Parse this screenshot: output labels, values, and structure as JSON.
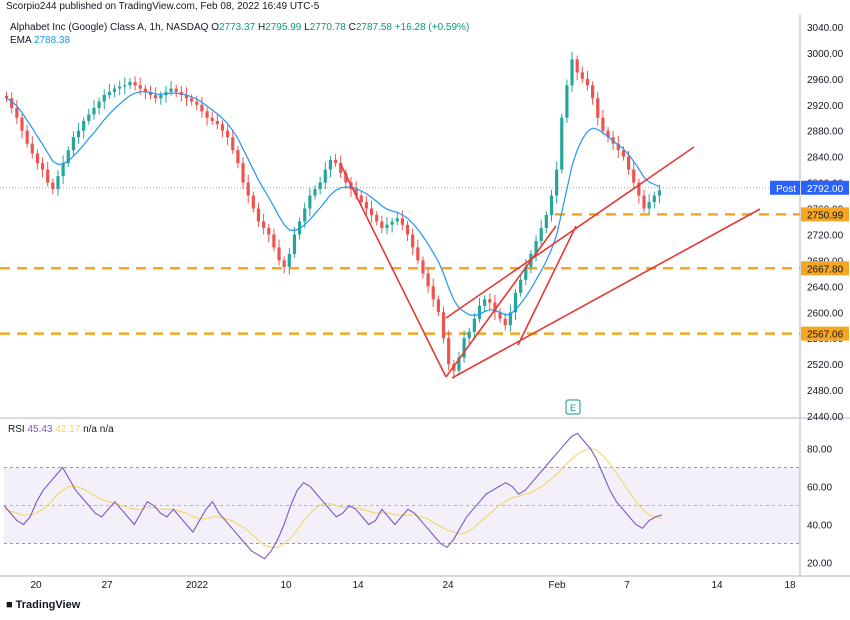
{
  "header": {
    "published": "Scorpio244 published on TradingView.com, Feb 08, 2022 16:49 UTC-5",
    "symbol": "Alphabet Inc (Google) Class A, 1h, NASDAQ",
    "o_label": "O",
    "o": "2773.37",
    "h_label": "H",
    "h": "2795.99",
    "l_label": "L",
    "l": "2770.78",
    "c_label": "C",
    "c": "2787.58",
    "change": "+16.28 (+0.59%)",
    "ema_label": "EMA",
    "ema_value": "2788.38"
  },
  "rsi_header": {
    "label": "RSI",
    "value": "45.43",
    "ma_value": "42.17",
    "na1": "n/a",
    "na2": "n/a"
  },
  "post_label": "Post",
  "post_value": "2792.00",
  "earnings_marker": "E",
  "brand": "TradingView",
  "colors": {
    "up": "#26a69a",
    "down": "#ef5350",
    "ema": "#2196f3",
    "rsi": "#7e57c2",
    "rsi_ma": "#f5d665",
    "hline": "#f5a623",
    "trend": "#e53935",
    "post": "#2962ff"
  },
  "chart_data": [
    {
      "type": "candlestick",
      "title": "Alphabet Inc (Google) Class A, 1h, NASDAQ",
      "ylim": [
        2440,
        3060
      ],
      "y_ticks": [
        "3040.00",
        "3000.00",
        "2960.00",
        "2920.00",
        "2880.00",
        "2840.00",
        "2800.00",
        "2760.00",
        "2720.00",
        "2680.00",
        "2640.00",
        "2600.00",
        "2560.00",
        "2520.00",
        "2480.00",
        "2440.00"
      ],
      "x_ticks": [
        "20",
        "27",
        "2022",
        "10",
        "14",
        "24",
        "Feb",
        "7",
        "14",
        "18"
      ],
      "horizontal_levels": [
        "2750.99",
        "2667.80",
        "2567.06"
      ],
      "series": [
        {
          "name": "Close",
          "values": [
            2930,
            2915,
            2900,
            2880,
            2860,
            2845,
            2830,
            2820,
            2800,
            2790,
            2810,
            2830,
            2850,
            2870,
            2880,
            2895,
            2905,
            2915,
            2925,
            2935,
            2940,
            2945,
            2948,
            2950,
            2955,
            2950,
            2945,
            2940,
            2935,
            2930,
            2935,
            2940,
            2945,
            2940,
            2935,
            2930,
            2925,
            2920,
            2910,
            2900,
            2895,
            2890,
            2880,
            2870,
            2850,
            2830,
            2800,
            2780,
            2760,
            2740,
            2730,
            2720,
            2700,
            2680,
            2670,
            2690,
            2720,
            2740,
            2760,
            2780,
            2790,
            2800,
            2820,
            2835,
            2830,
            2815,
            2800,
            2790,
            2780,
            2770,
            2760,
            2750,
            2740,
            2730,
            2735,
            2740,
            2745,
            2735,
            2720,
            2700,
            2680,
            2660,
            2640,
            2620,
            2600,
            2560,
            2520,
            2510,
            2530,
            2560,
            2570,
            2590,
            2610,
            2620,
            2615,
            2600,
            2590,
            2580,
            2600,
            2630,
            2650,
            2670,
            2690,
            2710,
            2730,
            2750,
            2780,
            2820,
            2900,
            2950,
            2990,
            2970,
            2960,
            2950,
            2930,
            2900,
            2880,
            2870,
            2860,
            2850,
            2840,
            2820,
            2800,
            2780,
            2760,
            2770,
            2780,
            2788
          ]
        },
        {
          "name": "EMA",
          "values": [
            2930,
            2925,
            2918,
            2908,
            2896,
            2884,
            2871,
            2859,
            2846,
            2833,
            2828,
            2829,
            2833,
            2841,
            2849,
            2858,
            2868,
            2877,
            2887,
            2897,
            2906,
            2914,
            2921,
            2928,
            2934,
            2938,
            2940,
            2940,
            2939,
            2937,
            2936,
            2937,
            2938,
            2938,
            2937,
            2935,
            2932,
            2929,
            2924,
            2918,
            2912,
            2906,
            2899,
            2891,
            2880,
            2868,
            2852,
            2836,
            2820,
            2804,
            2790,
            2777,
            2763,
            2748,
            2735,
            2727,
            2726,
            2729,
            2735,
            2743,
            2752,
            2761,
            2771,
            2781,
            2788,
            2792,
            2793,
            2793,
            2791,
            2787,
            2783,
            2777,
            2771,
            2764,
            2759,
            2756,
            2754,
            2750,
            2745,
            2737,
            2728,
            2717,
            2705,
            2692,
            2678,
            2660,
            2638,
            2619,
            2607,
            2601,
            2596,
            2595,
            2597,
            2601,
            2604,
            2603,
            2600,
            2596,
            2597,
            2604,
            2613,
            2624,
            2636,
            2650,
            2664,
            2679,
            2697,
            2719,
            2754,
            2790,
            2826,
            2850,
            2867,
            2879,
            2884,
            2882,
            2877,
            2871,
            2864,
            2858,
            2852,
            2843,
            2833,
            2821,
            2808,
            2801,
            2797,
            2794
          ]
        }
      ]
    },
    {
      "type": "line",
      "title": "RSI",
      "ylim": [
        15,
        95
      ],
      "y_ticks": [
        "80.00",
        "60.00",
        "40.00",
        "20.00"
      ],
      "band": [
        30,
        70
      ],
      "series": [
        {
          "name": "RSI",
          "values": [
            50,
            46,
            42,
            40,
            44,
            52,
            58,
            62,
            66,
            70,
            64,
            58,
            54,
            50,
            46,
            44,
            48,
            52,
            48,
            44,
            40,
            46,
            52,
            50,
            46,
            44,
            48,
            44,
            40,
            36,
            42,
            48,
            52,
            46,
            42,
            38,
            34,
            30,
            26,
            24,
            22,
            26,
            32,
            40,
            50,
            58,
            62,
            60,
            56,
            52,
            48,
            44,
            46,
            50,
            48,
            44,
            40,
            42,
            48,
            44,
            40,
            44,
            48,
            46,
            42,
            38,
            34,
            30,
            28,
            32,
            38,
            44,
            48,
            52,
            56,
            58,
            60,
            62,
            60,
            56,
            58,
            62,
            66,
            70,
            74,
            78,
            82,
            86,
            88,
            84,
            80,
            74,
            66,
            58,
            52,
            48,
            44,
            40,
            38,
            42,
            44,
            45
          ]
        },
        {
          "name": "RSI MA",
          "values": [
            48,
            47,
            46,
            45,
            45,
            46,
            48,
            51,
            55,
            58,
            60,
            60,
            59,
            57,
            55,
            53,
            52,
            51,
            50,
            49,
            48,
            48,
            49,
            49,
            48,
            48,
            48,
            47,
            46,
            44,
            43,
            43,
            44,
            44,
            43,
            42,
            40,
            38,
            35,
            32,
            29,
            28,
            28,
            30,
            33,
            37,
            42,
            46,
            49,
            51,
            51,
            50,
            49,
            49,
            49,
            48,
            47,
            46,
            46,
            46,
            45,
            45,
            45,
            45,
            44,
            43,
            41,
            39,
            37,
            36,
            35,
            36,
            38,
            41,
            44,
            47,
            50,
            52,
            54,
            55,
            56,
            57,
            59,
            61,
            64,
            67,
            71,
            74,
            77,
            79,
            80,
            79,
            76,
            72,
            67,
            62,
            57,
            52,
            48,
            45,
            44,
            43
          ]
        }
      ]
    }
  ]
}
